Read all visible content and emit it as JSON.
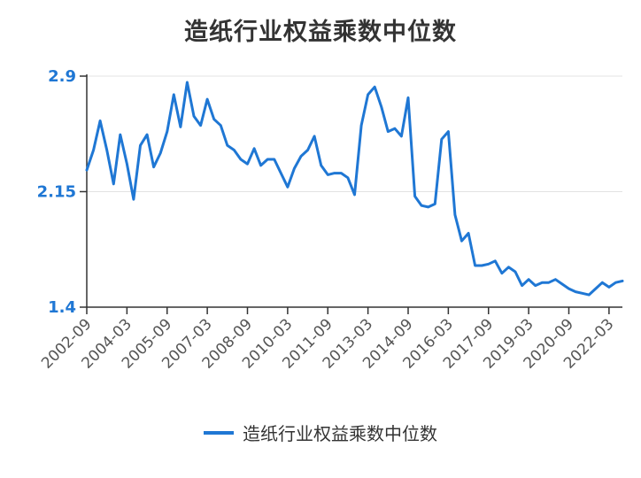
{
  "chart_data": {
    "type": "line",
    "title": "造纸行业权益乘数中位数",
    "xlabel": "",
    "ylabel": "",
    "ylim": [
      1.4,
      2.9
    ],
    "yticks": [
      "1.4",
      "2.15",
      "2.9"
    ],
    "xticks": [
      "2002-09",
      "2004-03",
      "2005-09",
      "2007-03",
      "2008-09",
      "2010-03",
      "2011-09",
      "2013-03",
      "2014-09",
      "2016-03",
      "2017-09",
      "2019-03",
      "2020-09",
      "2022-03"
    ],
    "x": [
      "2002-09",
      "2002-12",
      "2003-03",
      "2003-06",
      "2003-09",
      "2003-12",
      "2004-03",
      "2004-06",
      "2004-09",
      "2004-12",
      "2005-03",
      "2005-06",
      "2005-09",
      "2005-12",
      "2006-03",
      "2006-06",
      "2006-09",
      "2006-12",
      "2007-03",
      "2007-06",
      "2007-09",
      "2007-12",
      "2008-03",
      "2008-06",
      "2008-09",
      "2008-12",
      "2009-03",
      "2009-06",
      "2009-09",
      "2009-12",
      "2010-03",
      "2010-06",
      "2010-09",
      "2010-12",
      "2011-03",
      "2011-06",
      "2011-09",
      "2011-12",
      "2012-03",
      "2012-06",
      "2012-09",
      "2012-12",
      "2013-03",
      "2013-06",
      "2013-09",
      "2013-12",
      "2014-03",
      "2014-06",
      "2014-09",
      "2014-12",
      "2015-03",
      "2015-06",
      "2015-09",
      "2015-12",
      "2016-03",
      "2016-06",
      "2016-09",
      "2016-12",
      "2017-03",
      "2017-06",
      "2017-09",
      "2017-12",
      "2018-03",
      "2018-06",
      "2018-09",
      "2018-12",
      "2019-03",
      "2019-06",
      "2019-09",
      "2019-12",
      "2020-03",
      "2020-06",
      "2020-09",
      "2020-12",
      "2021-03",
      "2021-06",
      "2021-09",
      "2021-12",
      "2022-03",
      "2022-06",
      "2022-09"
    ],
    "series": [
      {
        "name": "造纸行业权益乘数中位数",
        "color": "#1f77d4",
        "values": [
          2.29,
          2.42,
          2.61,
          2.42,
          2.2,
          2.52,
          2.33,
          2.1,
          2.45,
          2.52,
          2.31,
          2.4,
          2.54,
          2.78,
          2.57,
          2.86,
          2.64,
          2.58,
          2.75,
          2.62,
          2.58,
          2.45,
          2.42,
          2.36,
          2.33,
          2.43,
          2.32,
          2.36,
          2.36,
          2.27,
          2.18,
          2.3,
          2.38,
          2.42,
          2.51,
          2.32,
          2.26,
          2.27,
          2.27,
          2.24,
          2.13,
          2.58,
          2.78,
          2.83,
          2.7,
          2.54,
          2.56,
          2.51,
          2.76,
          2.12,
          2.06,
          2.05,
          2.07,
          2.49,
          2.54,
          2.0,
          1.83,
          1.88,
          1.67,
          1.67,
          1.68,
          1.7,
          1.62,
          1.66,
          1.63,
          1.54,
          1.58,
          1.54,
          1.56,
          1.56,
          1.58,
          1.55,
          1.52,
          1.5,
          1.49,
          1.48,
          1.52,
          1.56,
          1.53,
          1.56,
          1.57
        ]
      }
    ],
    "legend": "bottom-center",
    "grid": true
  }
}
